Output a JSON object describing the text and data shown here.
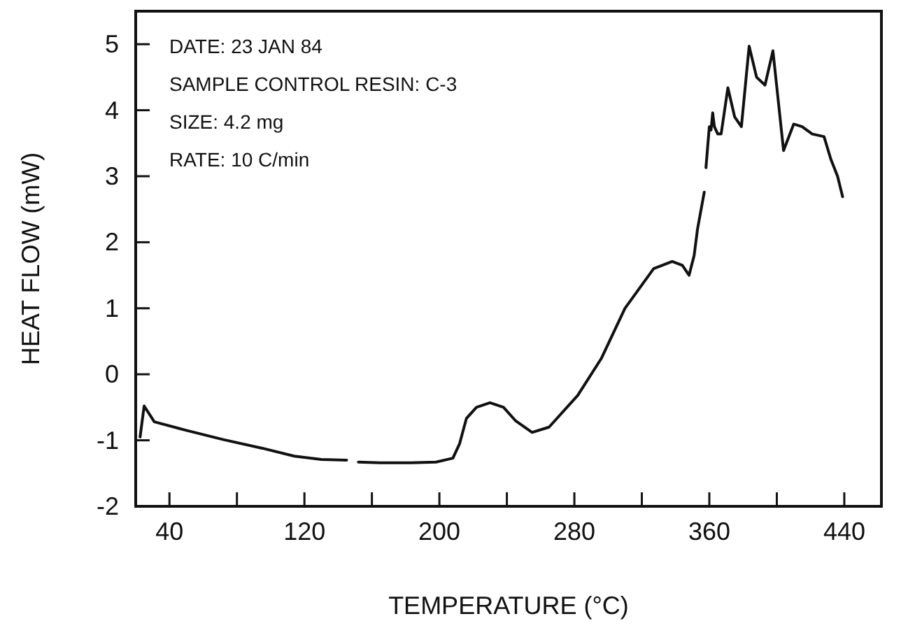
{
  "chart_data": {
    "type": "line",
    "xlabel": "TEMPERATURE (°C)",
    "ylabel": "HEAT FLOW (mW)",
    "annotations": [
      "DATE: 23 JAN 84",
      "SAMPLE CONTROL RESIN: C-3",
      "SIZE: 4.2 mg",
      "RATE: 10 C/min"
    ],
    "series": [
      {
        "color": "#111111",
        "x": [
          22.6,
          25,
          31,
          50,
          72,
          95,
          114,
          130,
          145,
          148,
          152,
          165,
          183,
          198,
          208,
          212,
          216,
          222,
          230,
          238,
          245,
          255,
          265,
          282,
          296,
          310,
          327,
          338,
          344,
          348,
          351,
          353,
          357,
          357.5,
          358,
          360,
          361,
          362,
          363,
          365,
          367,
          371,
          375,
          379,
          383.6,
          388,
          393,
          397.7,
          404,
          410,
          415,
          421,
          428,
          432,
          436,
          439
        ],
        "values": [
          -0.95,
          -0.48,
          -0.72,
          -0.85,
          -0.99,
          -1.12,
          -1.24,
          -1.29,
          -1.3,
          null,
          -1.33,
          -1.34,
          -1.34,
          -1.33,
          -1.27,
          -1.05,
          -0.67,
          -0.5,
          -0.43,
          -0.5,
          -0.7,
          -0.88,
          -0.8,
          -0.32,
          0.24,
          1.0,
          1.6,
          1.71,
          1.65,
          1.5,
          1.8,
          2.2,
          2.76,
          null,
          3.13,
          3.75,
          3.7,
          3.96,
          3.75,
          3.64,
          3.64,
          4.34,
          3.9,
          3.75,
          4.97,
          4.5,
          4.38,
          4.9,
          3.39,
          3.79,
          3.75,
          3.64,
          3.6,
          3.26,
          3.0,
          2.69
        ]
      }
    ],
    "xlim": [
      20,
      462
    ],
    "xticks": [
      40,
      {
        "value": 80,
        "label": null
      },
      120,
      {
        "value": 160,
        "label": null
      },
      200,
      {
        "value": 240,
        "label": null
      },
      280,
      {
        "value": 320,
        "label": null
      },
      360,
      {
        "value": 400,
        "label": null
      },
      440
    ],
    "ylim": [
      -2,
      5.5
    ],
    "yticks": [
      -2,
      -1,
      0,
      1,
      2,
      3,
      4,
      5
    ],
    "grid": false,
    "marker": "none",
    "line_style": "solid"
  }
}
